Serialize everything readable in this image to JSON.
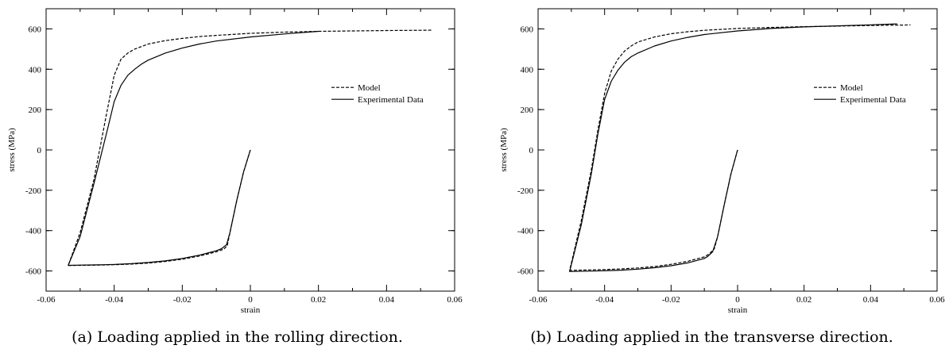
{
  "chart_data": [
    {
      "type": "line",
      "caption": "(a) Loading applied in the rolling direction.",
      "xlabel": "strain",
      "ylabel": "stress (MPa)",
      "xlim": [
        -0.06,
        0.06
      ],
      "ylim": [
        -700,
        700
      ],
      "xticks": [
        -0.06,
        -0.04,
        -0.02,
        0,
        0.02,
        0.04,
        0.06
      ],
      "xtick_labels": [
        "-0.06",
        "-0.04",
        "-0.02",
        "0",
        "0.02",
        "0.04",
        "0.06"
      ],
      "yticks": [
        -600,
        -400,
        -200,
        0,
        200,
        400,
        600
      ],
      "ytick_labels": [
        "-600",
        "-400",
        "-200",
        "0",
        "200",
        "400",
        "600"
      ],
      "grid": false,
      "legend_position": "right",
      "series": [
        {
          "name": "Model",
          "dash": "dashed",
          "points": [
            [
              0,
              0
            ],
            [
              -0.002,
              -110
            ],
            [
              -0.004,
              -250
            ],
            [
              -0.006,
              -410
            ],
            [
              -0.0068,
              -475
            ],
            [
              -0.0078,
              -492
            ],
            [
              -0.01,
              -505
            ],
            [
              -0.015,
              -526
            ],
            [
              -0.02,
              -542
            ],
            [
              -0.025,
              -553
            ],
            [
              -0.03,
              -561
            ],
            [
              -0.035,
              -566
            ],
            [
              -0.04,
              -569
            ],
            [
              -0.045,
              -571
            ],
            [
              -0.05,
              -572
            ],
            [
              -0.0535,
              -573
            ],
            [
              -0.05,
              -410
            ],
            [
              -0.046,
              -150
            ],
            [
              -0.042,
              200
            ],
            [
              -0.04,
              370
            ],
            [
              -0.038,
              450
            ],
            [
              -0.036,
              480
            ],
            [
              -0.034,
              500
            ],
            [
              -0.03,
              525
            ],
            [
              -0.025,
              542
            ],
            [
              -0.02,
              553
            ],
            [
              -0.015,
              562
            ],
            [
              -0.01,
              568
            ],
            [
              0,
              578
            ],
            [
              0.01,
              584
            ],
            [
              0.02,
              588
            ],
            [
              0.03,
              590
            ],
            [
              0.04,
              592
            ],
            [
              0.05,
              593
            ],
            [
              0.0535,
              594
            ]
          ]
        },
        {
          "name": "Experimental Data",
          "dash": "solid",
          "points": [
            [
              0,
              0
            ],
            [
              -0.002,
              -110
            ],
            [
              -0.004,
              -250
            ],
            [
              -0.006,
              -410
            ],
            [
              -0.007,
              -470
            ],
            [
              -0.0085,
              -490
            ],
            [
              -0.01,
              -500
            ],
            [
              -0.015,
              -522
            ],
            [
              -0.02,
              -538
            ],
            [
              -0.025,
              -550
            ],
            [
              -0.03,
              -558
            ],
            [
              -0.035,
              -564
            ],
            [
              -0.04,
              -568
            ],
            [
              -0.045,
              -570
            ],
            [
              -0.05,
              -571
            ],
            [
              -0.0535,
              -572
            ],
            [
              -0.05,
              -430
            ],
            [
              -0.046,
              -170
            ],
            [
              -0.042,
              100
            ],
            [
              -0.04,
              240
            ],
            [
              -0.038,
              320
            ],
            [
              -0.036,
              370
            ],
            [
              -0.034,
              400
            ],
            [
              -0.032,
              425
            ],
            [
              -0.03,
              445
            ],
            [
              -0.025,
              480
            ],
            [
              -0.02,
              505
            ],
            [
              -0.015,
              525
            ],
            [
              -0.01,
              540
            ],
            [
              0,
              560
            ],
            [
              0.01,
              575
            ],
            [
              0.02,
              588
            ]
          ]
        }
      ]
    },
    {
      "type": "line",
      "caption": "(b) Loading applied in the transverse direction.",
      "xlabel": "strain",
      "ylabel": "stress (MPa)",
      "xlim": [
        -0.06,
        0.06
      ],
      "ylim": [
        -700,
        700
      ],
      "xticks": [
        -0.06,
        -0.04,
        -0.02,
        0,
        0.02,
        0.04,
        0.06
      ],
      "xtick_labels": [
        "-0.06",
        "-0.04",
        "-0.02",
        "0",
        "0.02",
        "0.04",
        "0.06"
      ],
      "yticks": [
        -600,
        -400,
        -200,
        0,
        200,
        400,
        600
      ],
      "ytick_labels": [
        "-600",
        "-400",
        "-200",
        "0",
        "200",
        "400",
        "600"
      ],
      "grid": false,
      "legend_position": "right",
      "series": [
        {
          "name": "Model",
          "dash": "dashed",
          "points": [
            [
              0,
              0
            ],
            [
              -0.002,
              -120
            ],
            [
              -0.004,
              -270
            ],
            [
              -0.006,
              -430
            ],
            [
              -0.007,
              -490
            ],
            [
              -0.0085,
              -515
            ],
            [
              -0.01,
              -530
            ],
            [
              -0.015,
              -552
            ],
            [
              -0.02,
              -567
            ],
            [
              -0.025,
              -578
            ],
            [
              -0.03,
              -585
            ],
            [
              -0.035,
              -590
            ],
            [
              -0.04,
              -593
            ],
            [
              -0.045,
              -595
            ],
            [
              -0.0505,
              -597
            ],
            [
              -0.047,
              -350
            ],
            [
              -0.044,
              -100
            ],
            [
              -0.042,
              100
            ],
            [
              -0.04,
              280
            ],
            [
              -0.038,
              390
            ],
            [
              -0.036,
              450
            ],
            [
              -0.034,
              490
            ],
            [
              -0.032,
              515
            ],
            [
              -0.03,
              535
            ],
            [
              -0.025,
              560
            ],
            [
              -0.02,
              576
            ],
            [
              -0.015,
              586
            ],
            [
              -0.01,
              593
            ],
            [
              0,
              602
            ],
            [
              0.01,
              607
            ],
            [
              0.02,
              611
            ],
            [
              0.03,
              614
            ],
            [
              0.04,
              617
            ],
            [
              0.05,
              619
            ],
            [
              0.052,
              620
            ]
          ]
        },
        {
          "name": "Experimental Data",
          "dash": "solid",
          "points": [
            [
              0,
              0
            ],
            [
              -0.002,
              -120
            ],
            [
              -0.004,
              -270
            ],
            [
              -0.006,
              -430
            ],
            [
              -0.0075,
              -505
            ],
            [
              -0.009,
              -528
            ],
            [
              -0.01,
              -538
            ],
            [
              -0.015,
              -560
            ],
            [
              -0.02,
              -574
            ],
            [
              -0.025,
              -584
            ],
            [
              -0.03,
              -591
            ],
            [
              -0.035,
              -596
            ],
            [
              -0.04,
              -599
            ],
            [
              -0.045,
              -601
            ],
            [
              -0.0505,
              -603
            ],
            [
              -0.047,
              -370
            ],
            [
              -0.044,
              -120
            ],
            [
              -0.042,
              80
            ],
            [
              -0.04,
              250
            ],
            [
              -0.038,
              340
            ],
            [
              -0.036,
              395
            ],
            [
              -0.034,
              435
            ],
            [
              -0.032,
              462
            ],
            [
              -0.03,
              480
            ],
            [
              -0.025,
              515
            ],
            [
              -0.02,
              540
            ],
            [
              -0.015,
              558
            ],
            [
              -0.01,
              572
            ],
            [
              0,
              590
            ],
            [
              0.01,
              602
            ],
            [
              0.02,
              610
            ],
            [
              0.03,
              615
            ],
            [
              0.04,
              620
            ],
            [
              0.048,
              625
            ]
          ]
        }
      ]
    }
  ]
}
